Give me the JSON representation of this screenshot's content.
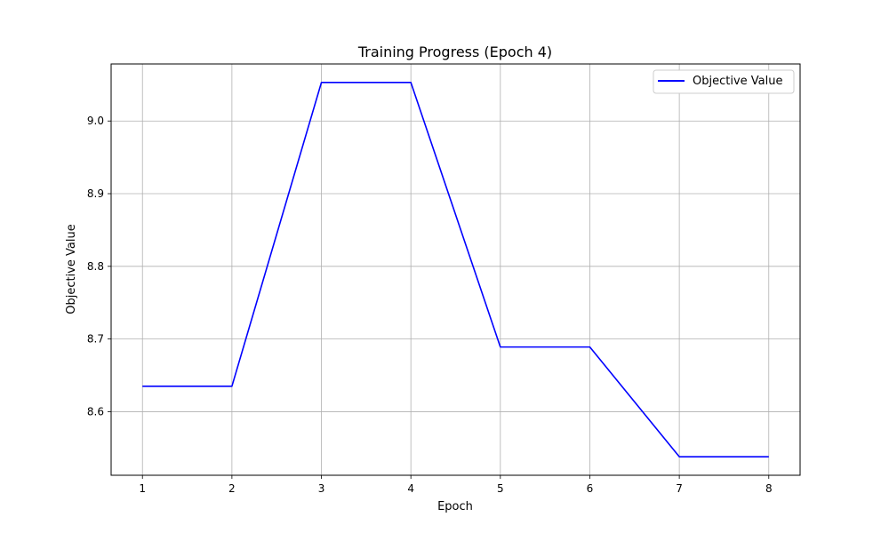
{
  "chart_data": {
    "type": "line",
    "title": "Training Progress (Epoch 4)",
    "xlabel": "Epoch",
    "ylabel": "Objective Value",
    "x": [
      1,
      2,
      3,
      4,
      5,
      6,
      7,
      8
    ],
    "series": [
      {
        "name": "Objective Value",
        "color": "#0000ff",
        "values": [
          8.635,
          8.635,
          9.053,
          9.053,
          8.689,
          8.689,
          8.538,
          8.538
        ]
      }
    ],
    "xlim": [
      0.65,
      8.35
    ],
    "ylim": [
      8.5125,
      9.0785
    ],
    "xticks": [
      1,
      2,
      3,
      4,
      5,
      6,
      7,
      8
    ],
    "yticks": [
      8.6,
      8.7,
      8.8,
      8.9,
      9.0
    ],
    "ytick_labels": [
      "8.6",
      "8.7",
      "8.8",
      "8.9",
      "9.0"
    ],
    "grid": true,
    "legend_position": "upper right"
  }
}
